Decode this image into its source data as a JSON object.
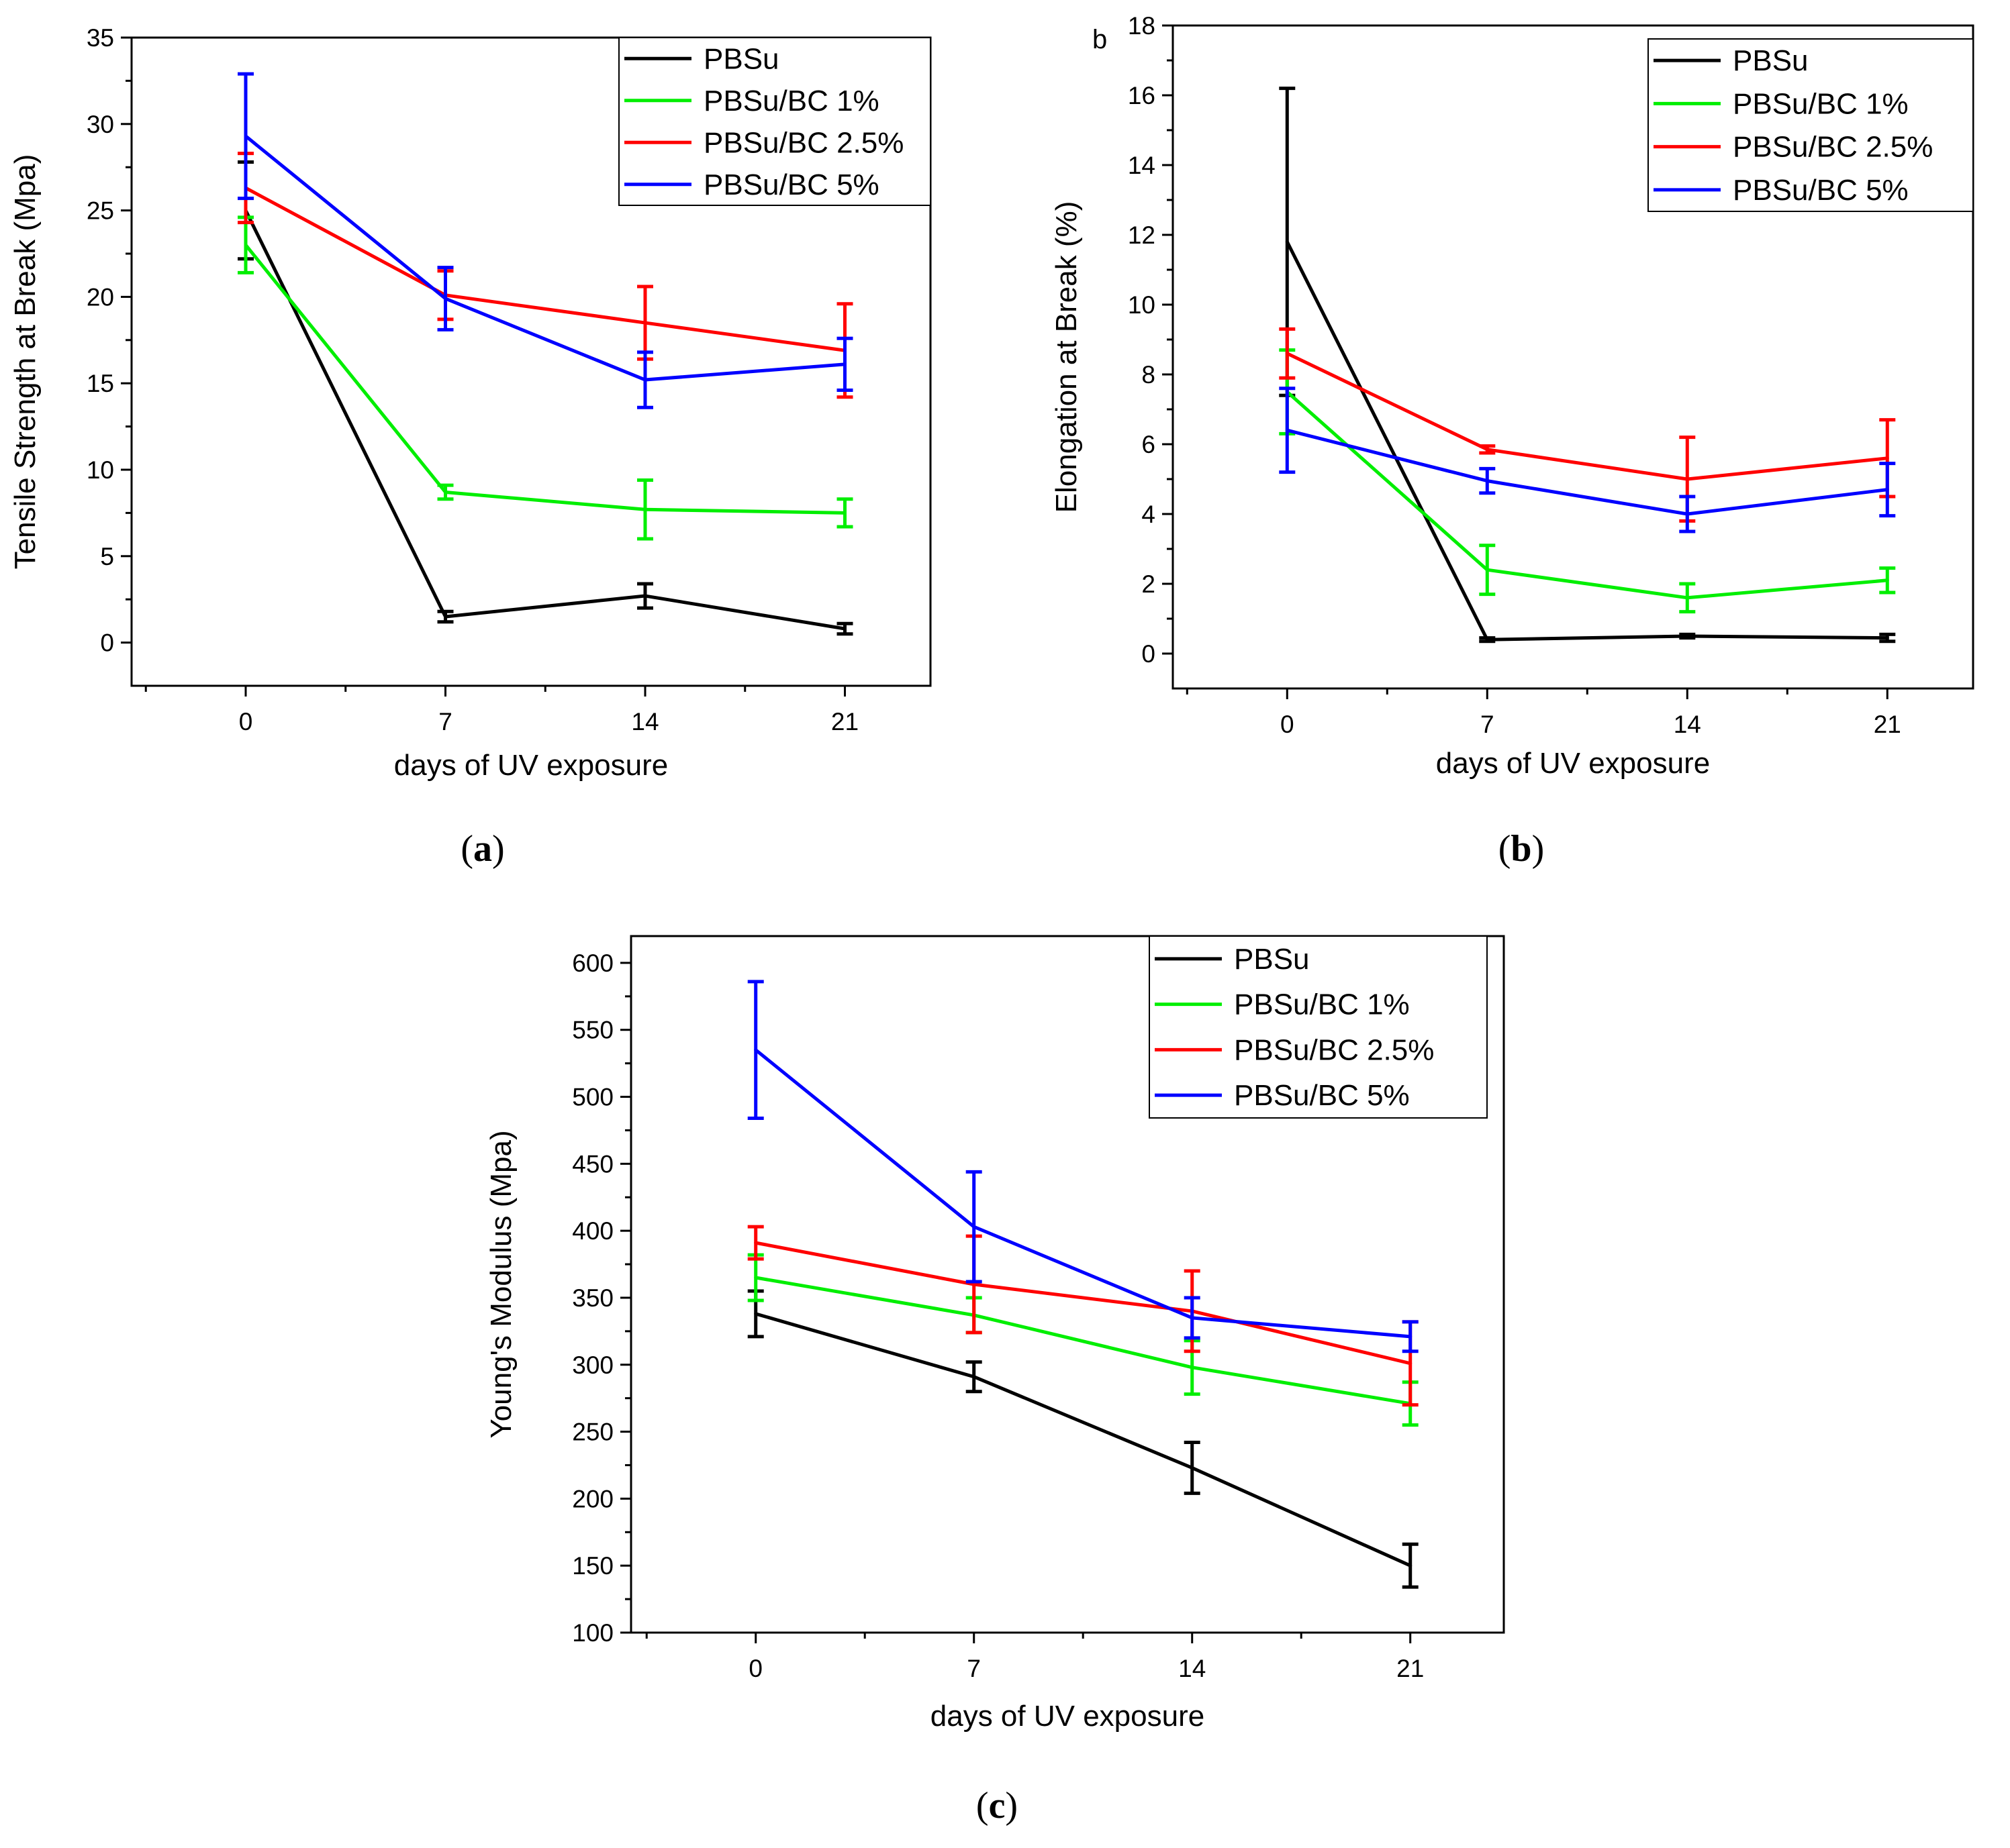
{
  "chart_data": [
    {
      "panel": "(a)",
      "panel_label_open": "(",
      "panel_label_letter": "a",
      "panel_label_close": ")",
      "type": "line",
      "xlabel": "days of UV exposure",
      "ylabel": "Tensile Strength at Break (Mpa)",
      "xlim": [
        -4,
        24
      ],
      "ylim": [
        -2.5,
        35
      ],
      "x_ticks": [
        0,
        7,
        14,
        21
      ],
      "y_ticks": [
        0,
        5,
        10,
        15,
        20,
        25,
        30,
        35
      ],
      "legend_position": "top-right",
      "categories": [
        0,
        7,
        14,
        21
      ],
      "series": [
        {
          "name": "PBSu",
          "color": "#000000",
          "values": [
            25.0,
            1.5,
            2.7,
            0.8
          ],
          "errors": [
            2.8,
            0.3,
            0.7,
            0.3
          ]
        },
        {
          "name": "PBSu/BC 1%",
          "color": "#00ee00",
          "values": [
            23.0,
            8.7,
            7.7,
            7.5
          ],
          "errors": [
            1.6,
            0.4,
            1.7,
            0.8
          ]
        },
        {
          "name": "PBSu/BC 2.5%",
          "color": "#ff0000",
          "values": [
            26.3,
            20.1,
            18.5,
            16.9
          ],
          "errors": [
            2.0,
            1.4,
            2.1,
            2.7
          ]
        },
        {
          "name": "PBSu/BC 5%",
          "color": "#0000ff",
          "values": [
            29.3,
            19.9,
            15.2,
            16.1
          ],
          "errors": [
            3.6,
            1.8,
            1.6,
            1.5
          ]
        }
      ]
    },
    {
      "panel": "(b)",
      "panel_label_open": "(",
      "panel_label_letter": "b",
      "panel_label_close": ")",
      "corner_label": "b",
      "type": "line",
      "xlabel": "days of UV exposure",
      "ylabel": "Elongation at Break (%)",
      "xlim": [
        -4,
        24
      ],
      "ylim": [
        -1,
        18
      ],
      "x_ticks": [
        0,
        7,
        14,
        21
      ],
      "y_ticks": [
        0,
        2,
        4,
        6,
        8,
        10,
        12,
        14,
        16,
        18
      ],
      "legend_position": "top-right",
      "categories": [
        0,
        7,
        14,
        21
      ],
      "series": [
        {
          "name": "PBSu",
          "color": "#000000",
          "values": [
            11.8,
            0.4,
            0.5,
            0.45
          ],
          "errors": [
            4.4,
            0.05,
            0.05,
            0.1
          ]
        },
        {
          "name": "PBSu/BC 1%",
          "color": "#00ee00",
          "values": [
            7.5,
            2.4,
            1.6,
            2.1
          ],
          "errors": [
            1.2,
            0.7,
            0.4,
            0.35
          ]
        },
        {
          "name": "PBSu/BC 2.5%",
          "color": "#ff0000",
          "values": [
            8.6,
            5.85,
            5.0,
            5.6
          ],
          "errors": [
            0.7,
            0.1,
            1.2,
            1.1
          ]
        },
        {
          "name": "PBSu/BC 5%",
          "color": "#0000ff",
          "values": [
            6.4,
            4.95,
            4.0,
            4.7
          ],
          "errors": [
            1.2,
            0.35,
            0.5,
            0.75
          ]
        }
      ]
    },
    {
      "panel": "(c)",
      "panel_label_open": "(",
      "panel_label_letter": "c",
      "panel_label_close": ")",
      "type": "line",
      "xlabel": "days of UV exposure",
      "ylabel": "Young's Modulus (Mpa)",
      "xlim": [
        -4,
        24
      ],
      "ylim": [
        100,
        620
      ],
      "x_ticks": [
        0,
        7,
        14,
        21
      ],
      "y_ticks": [
        100,
        150,
        200,
        250,
        300,
        350,
        400,
        450,
        500,
        550,
        600
      ],
      "legend_position": "top-right",
      "categories": [
        0,
        7,
        14,
        21
      ],
      "series": [
        {
          "name": "PBSu",
          "color": "#000000",
          "values": [
            338,
            291,
            223,
            150
          ],
          "errors": [
            17,
            11,
            19,
            16
          ]
        },
        {
          "name": "PBSu/BC 1%",
          "color": "#00ee00",
          "values": [
            365,
            337,
            298,
            271
          ],
          "errors": [
            17,
            13,
            20,
            16
          ]
        },
        {
          "name": "PBSu/BC 2.5%",
          "color": "#ff0000",
          "values": [
            391,
            360,
            340,
            301
          ],
          "errors": [
            12,
            36,
            30,
            31
          ]
        },
        {
          "name": "PBSu/BC 5%",
          "color": "#0000ff",
          "values": [
            535,
            403,
            335,
            321
          ],
          "errors": [
            51,
            41,
            15,
            11
          ]
        }
      ]
    }
  ]
}
